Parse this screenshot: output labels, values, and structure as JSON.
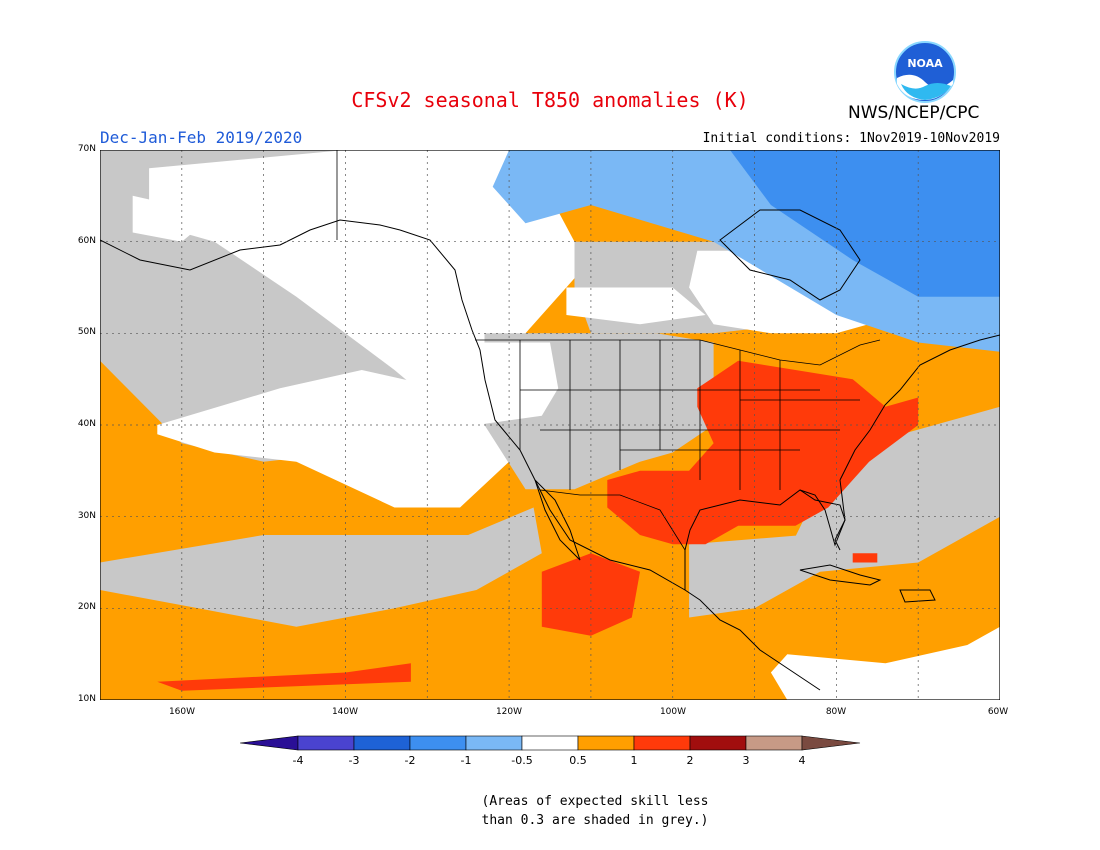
{
  "title": "CFSv2 seasonal T850 anomalies (K)",
  "agency": "NWS/NCEP/CPC",
  "logo_text": "NOAA",
  "season": "Dec-Jan-Feb 2019/2020",
  "initial_conditions": "Initial conditions: 1Nov2019-10Nov2019",
  "lat_labels": [
    "70N",
    "60N",
    "50N",
    "40N",
    "30N",
    "20N",
    "10N"
  ],
  "lon_labels": [
    "160W",
    "140W",
    "120W",
    "100W",
    "80W",
    "60W"
  ],
  "legend": {
    "labels": [
      "-4",
      "-3",
      "-2",
      "-1",
      "-0.5",
      "0.5",
      "1",
      "2",
      "3",
      "4"
    ],
    "colors": [
      "#2a0f96",
      "#4a43cf",
      "#1e62d6",
      "#3d8ff0",
      "#7ab8f5",
      "#ffffff",
      "#ff9f00",
      "#ff3a0a",
      "#a10e0e",
      "#c79a86",
      "#7a4a40"
    ],
    "grey_color": "#c8c8c8"
  },
  "skill_note": [
    "(Areas of expected skill less",
    "than 0.3 are shaded in grey.)"
  ],
  "map": {
    "extent": {
      "lon_min": -170,
      "lon_max": -60,
      "lat_min": 10,
      "lat_max": 70
    },
    "base_category": "orange",
    "regions": [
      {
        "name": "gray-north-west",
        "cat": "gray",
        "pts": [
          [
            -170,
            70
          ],
          [
            -120,
            70
          ],
          [
            -120,
            45
          ],
          [
            -130,
            40
          ],
          [
            -140,
            37
          ],
          [
            -150,
            36
          ],
          [
            -160,
            38
          ],
          [
            -170,
            47
          ]
        ]
      },
      {
        "name": "white-alaska-canada",
        "cat": "white",
        "pts": [
          [
            -164,
            68
          ],
          [
            -140,
            70
          ],
          [
            -118,
            70
          ],
          [
            -112,
            60
          ],
          [
            -112,
            56
          ],
          [
            -118,
            50
          ],
          [
            -122,
            44
          ],
          [
            -126,
            40
          ],
          [
            -134,
            46
          ],
          [
            -146,
            54
          ],
          [
            -156,
            60
          ],
          [
            -164,
            62
          ]
        ]
      },
      {
        "name": "white-alaska-coast",
        "cat": "white",
        "pts": [
          [
            -166,
            65
          ],
          [
            -156,
            63
          ],
          [
            -160,
            60
          ],
          [
            -166,
            61
          ]
        ]
      },
      {
        "name": "white-north-pacific",
        "cat": "white",
        "pts": [
          [
            -163,
            40
          ],
          [
            -148,
            44
          ],
          [
            -138,
            46
          ],
          [
            -128,
            44
          ],
          [
            -122,
            42
          ],
          [
            -120,
            36
          ],
          [
            -126,
            31
          ],
          [
            -134,
            31
          ],
          [
            -146,
            36
          ],
          [
            -156,
            37
          ],
          [
            -163,
            39
          ]
        ]
      },
      {
        "name": "gray-subtropical-pacific",
        "cat": "gray",
        "pts": [
          [
            -170,
            25
          ],
          [
            -150,
            28
          ],
          [
            -138,
            28
          ],
          [
            -125,
            28
          ],
          [
            -117,
            31
          ],
          [
            -116,
            26
          ],
          [
            -124,
            22
          ],
          [
            -134,
            20
          ],
          [
            -146,
            18
          ],
          [
            -158,
            20
          ],
          [
            -170,
            22
          ]
        ]
      },
      {
        "name": "gray-interior-west",
        "cat": "gray",
        "pts": [
          [
            -123,
            50
          ],
          [
            -110,
            50
          ],
          [
            -102,
            50
          ],
          [
            -95,
            49
          ],
          [
            -95,
            40
          ],
          [
            -100,
            37
          ],
          [
            -104,
            36
          ],
          [
            -112,
            33
          ],
          [
            -118,
            33
          ],
          [
            -123,
            40
          ]
        ]
      },
      {
        "name": "white-pacific-northwest",
        "cat": "white",
        "pts": [
          [
            -126,
            49
          ],
          [
            -115,
            49
          ],
          [
            -114,
            44
          ],
          [
            -116,
            41
          ],
          [
            -124,
            40
          ],
          [
            -127,
            44
          ]
        ]
      },
      {
        "name": "gray-canada-mid",
        "cat": "gray",
        "pts": [
          [
            -112,
            60
          ],
          [
            -75,
            60
          ],
          [
            -75,
            53
          ],
          [
            -85,
            51
          ],
          [
            -95,
            50
          ],
          [
            -110,
            50
          ],
          [
            -112,
            55
          ]
        ]
      },
      {
        "name": "white-hudson",
        "cat": "white",
        "pts": [
          [
            -97,
            59
          ],
          [
            -75,
            59
          ],
          [
            -70,
            56
          ],
          [
            -72,
            52
          ],
          [
            -80,
            50
          ],
          [
            -88,
            50
          ],
          [
            -95,
            51
          ],
          [
            -98,
            55
          ]
        ]
      },
      {
        "name": "white-canada-west",
        "cat": "white",
        "pts": [
          [
            -113,
            55
          ],
          [
            -100,
            55
          ],
          [
            -96,
            52
          ],
          [
            -104,
            51
          ],
          [
            -113,
            52
          ]
        ]
      },
      {
        "name": "blue-light-north",
        "cat": "lblue",
        "pts": [
          [
            -120,
            70
          ],
          [
            -60,
            70
          ],
          [
            -60,
            48
          ],
          [
            -70,
            49
          ],
          [
            -80,
            52
          ],
          [
            -95,
            60
          ],
          [
            -110,
            64
          ],
          [
            -118,
            62
          ],
          [
            -122,
            66
          ]
        ]
      },
      {
        "name": "blue-medium-northeast",
        "cat": "mblue",
        "pts": [
          [
            -93,
            70
          ],
          [
            -60,
            70
          ],
          [
            -60,
            54
          ],
          [
            -70,
            54
          ],
          [
            -78,
            58
          ],
          [
            -88,
            64
          ]
        ]
      },
      {
        "name": "gray-southeast-atlantic",
        "cat": "gray",
        "pts": [
          [
            -80,
            37
          ],
          [
            -60,
            42
          ],
          [
            -60,
            30
          ],
          [
            -70,
            25
          ],
          [
            -82,
            24
          ],
          [
            -86,
            26
          ]
        ]
      },
      {
        "name": "gray-gulf",
        "cat": "gray",
        "pts": [
          [
            -98,
            27
          ],
          [
            -84,
            28
          ],
          [
            -82,
            24
          ],
          [
            -90,
            20
          ],
          [
            -98,
            19
          ]
        ]
      },
      {
        "name": "white-caribbean",
        "cat": "white",
        "pts": [
          [
            -86,
            15
          ],
          [
            -74,
            14
          ],
          [
            -64,
            16
          ],
          [
            -60,
            18
          ],
          [
            -60,
            10
          ],
          [
            -86,
            10
          ],
          [
            -88,
            13
          ]
        ]
      },
      {
        "name": "red-east-us",
        "cat": "red",
        "pts": [
          [
            -97,
            44
          ],
          [
            -92,
            47
          ],
          [
            -85,
            46
          ],
          [
            -78,
            45
          ],
          [
            -74,
            42
          ],
          [
            -70,
            43
          ],
          [
            -70,
            40
          ],
          [
            -76,
            36
          ],
          [
            -78,
            34
          ],
          [
            -81,
            31
          ],
          [
            -85,
            29
          ],
          [
            -88,
            29
          ],
          [
            -92,
            29
          ],
          [
            -96,
            27
          ],
          [
            -100,
            27
          ],
          [
            -104,
            28
          ],
          [
            -108,
            31
          ],
          [
            -108,
            34
          ],
          [
            -104,
            35
          ],
          [
            -98,
            35
          ],
          [
            -95,
            38
          ],
          [
            -97,
            42
          ]
        ]
      },
      {
        "name": "red-mexico",
        "cat": "red",
        "pts": [
          [
            -116,
            24
          ],
          [
            -110,
            26
          ],
          [
            -104,
            24
          ],
          [
            -105,
            19
          ],
          [
            -110,
            17
          ],
          [
            -116,
            18
          ]
        ]
      },
      {
        "name": "red-pacific-strip",
        "cat": "red",
        "pts": [
          [
            -163,
            12
          ],
          [
            -140,
            13
          ],
          [
            -132,
            14
          ],
          [
            -132,
            12
          ],
          [
            -160,
            11
          ]
        ]
      },
      {
        "name": "red-caribbean-dot",
        "cat": "red",
        "pts": [
          [
            -78,
            26
          ],
          [
            -75,
            26
          ],
          [
            -75,
            25
          ],
          [
            -78,
            25
          ]
        ]
      }
    ]
  }
}
